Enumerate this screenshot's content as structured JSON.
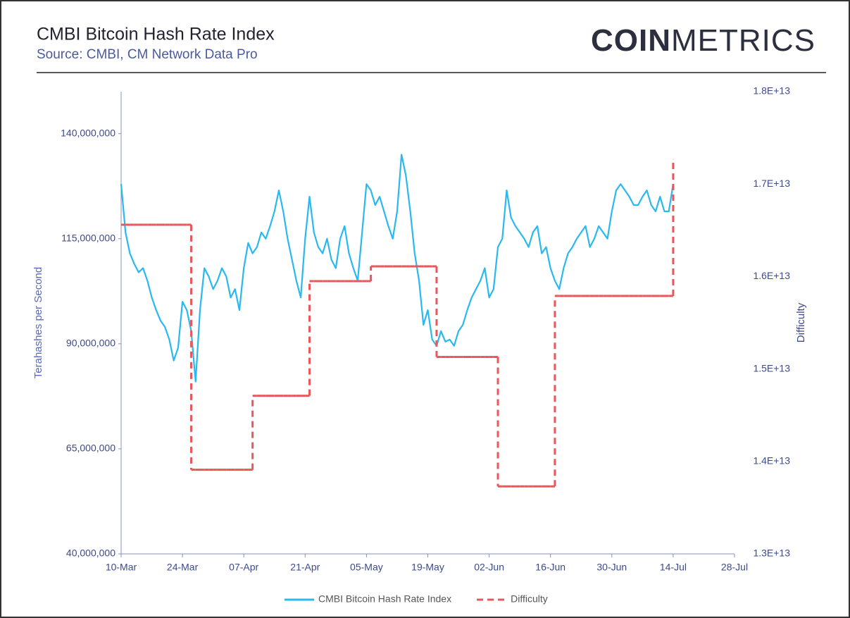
{
  "brand": {
    "bold": "COIN",
    "light": "METRICS"
  },
  "chart_data": {
    "type": "line",
    "title": "CMBI Bitcoin Hash Rate Index",
    "subtitle": "Source: CMBI, CM Network Data Pro",
    "y_label": "Terahashes per Second",
    "y2_label": "Difficulty",
    "x": [
      "10-Mar",
      "11-Mar",
      "12-Mar",
      "13-Mar",
      "14-Mar",
      "15-Mar",
      "16-Mar",
      "17-Mar",
      "18-Mar",
      "19-Mar",
      "20-Mar",
      "21-Mar",
      "22-Mar",
      "23-Mar",
      "24-Mar",
      "25-Mar",
      "26-Mar",
      "27-Mar",
      "28-Mar",
      "29-Mar",
      "30-Mar",
      "31-Mar",
      "01-Apr",
      "02-Apr",
      "03-Apr",
      "04-Apr",
      "05-Apr",
      "06-Apr",
      "07-Apr",
      "08-Apr",
      "09-Apr",
      "10-Apr",
      "11-Apr",
      "12-Apr",
      "13-Apr",
      "14-Apr",
      "15-Apr",
      "16-Apr",
      "17-Apr",
      "18-Apr",
      "19-Apr",
      "20-Apr",
      "21-Apr",
      "22-Apr",
      "23-Apr",
      "24-Apr",
      "25-Apr",
      "26-Apr",
      "27-Apr",
      "28-Apr",
      "29-Apr",
      "30-Apr",
      "01-May",
      "02-May",
      "03-May",
      "04-May",
      "05-May",
      "06-May",
      "07-May",
      "08-May",
      "09-May",
      "10-May",
      "11-May",
      "12-May",
      "13-May",
      "14-May",
      "15-May",
      "16-May",
      "17-May",
      "18-May",
      "19-May",
      "20-May",
      "21-May",
      "22-May",
      "23-May",
      "24-May",
      "25-May",
      "26-May",
      "27-May",
      "28-May",
      "29-May",
      "30-May",
      "31-May",
      "01-Jun",
      "02-Jun",
      "03-Jun",
      "04-Jun",
      "05-Jun",
      "06-Jun",
      "07-Jun",
      "08-Jun",
      "09-Jun",
      "10-Jun",
      "11-Jun",
      "12-Jun",
      "13-Jun",
      "14-Jun",
      "15-Jun",
      "16-Jun",
      "17-Jun",
      "18-Jun",
      "19-Jun",
      "20-Jun",
      "21-Jun",
      "22-Jun",
      "23-Jun",
      "24-Jun",
      "25-Jun",
      "26-Jun",
      "27-Jun",
      "28-Jun",
      "29-Jun",
      "30-Jun",
      "01-Jul",
      "02-Jul",
      "03-Jul",
      "04-Jul",
      "05-Jul",
      "06-Jul",
      "07-Jul",
      "08-Jul",
      "09-Jul",
      "10-Jul",
      "11-Jul",
      "12-Jul",
      "13-Jul",
      "14-Jul",
      "15-Jul",
      "16-Jul",
      "17-Jul",
      "18-Jul",
      "19-Jul",
      "20-Jul",
      "21-Jul",
      "22-Jul",
      "23-Jul",
      "24-Jul",
      "25-Jul",
      "26-Jul",
      "27-Jul",
      "28-Jul"
    ],
    "xticks": [
      "10-Mar",
      "24-Mar",
      "07-Apr",
      "21-Apr",
      "05-May",
      "19-May",
      "02-Jun",
      "16-Jun",
      "30-Jun",
      "14-Jul",
      "28-Jul"
    ],
    "ylim": [
      40000000,
      150000000
    ],
    "yticks": [
      {
        "value": 40000000,
        "label": "40,000,000"
      },
      {
        "value": 65000000,
        "label": "65,000,000"
      },
      {
        "value": 90000000,
        "label": "90,000,000"
      },
      {
        "value": 115000000,
        "label": "115,000,000"
      },
      {
        "value": 140000000,
        "label": "140,000,000"
      }
    ],
    "y2lim": [
      13000000000000,
      18000000000000
    ],
    "y2ticks": [
      {
        "value": 13000000000000,
        "label": "1.3E+13"
      },
      {
        "value": 14000000000000,
        "label": "1.4E+13"
      },
      {
        "value": 15000000000000,
        "label": "1.5E+13"
      },
      {
        "value": 16000000000000,
        "label": "1.6E+13"
      },
      {
        "value": 17000000000000,
        "label": "1.7E+13"
      },
      {
        "value": 18000000000000,
        "label": "1.8E+13"
      }
    ],
    "series": [
      {
        "name": "CMBI Bitcoin Hash Rate Index",
        "color": "#2ab8f0",
        "style": "solid",
        "values": [
          128000000,
          116500000,
          111500000,
          109000000,
          107000000,
          108000000,
          105000000,
          101000000,
          98000000,
          95500000,
          94000000,
          91000000,
          86000000,
          89000000,
          100000000,
          98000000,
          93000000,
          81000000,
          98000000,
          108000000,
          106000000,
          103000000,
          105000000,
          108000000,
          106000000,
          101000000,
          103000000,
          98000000,
          108000000,
          114000000,
          111500000,
          113000000,
          116500000,
          115000000,
          118000000,
          121500000,
          126500000,
          121500000,
          115000000,
          110000000,
          105000000,
          101000000,
          115000000,
          125000000,
          116500000,
          113000000,
          111500000,
          115000000,
          110000000,
          108000000,
          115000000,
          118000000,
          111500000,
          108000000,
          105000000,
          116500000,
          128000000,
          126500000,
          123000000,
          125000000,
          121500000,
          118000000,
          115000000,
          121500000,
          135000000,
          130000000,
          121500000,
          111500000,
          105000000,
          94500000,
          98000000,
          91000000,
          89500000,
          93000000,
          90500000,
          91000000,
          89500000,
          93000000,
          94500000,
          98000000,
          101000000,
          103000000,
          105000000,
          108000000,
          101000000,
          103000000,
          113000000,
          115000000,
          126500000,
          120000000,
          118000000,
          116500000,
          115000000,
          113000000,
          116500000,
          118000000,
          111500000,
          113000000,
          108000000,
          105000000,
          103000000,
          108000000,
          111500000,
          113000000,
          115000000,
          116500000,
          118000000,
          113000000,
          115000000,
          118000000,
          116500000,
          115000000,
          121500000,
          126500000,
          128000000,
          126500000,
          125000000,
          123000000,
          123000000,
          125000000,
          126500000,
          123000000,
          121500000,
          125000000,
          121500000,
          121500000,
          128000000,
          null,
          null,
          null,
          null,
          null,
          null,
          null,
          null,
          null,
          null,
          null,
          null,
          null,
          null
        ]
      },
      {
        "name": "Difficulty",
        "color": "#e8585a",
        "style": "dashed",
        "step": true,
        "axis": "y2",
        "values": [
          16560000000000,
          16560000000000,
          16560000000000,
          16560000000000,
          16560000000000,
          16560000000000,
          16560000000000,
          16560000000000,
          16560000000000,
          16560000000000,
          16560000000000,
          16560000000000,
          16560000000000,
          16560000000000,
          16560000000000,
          16560000000000,
          13910000000000,
          13910000000000,
          13910000000000,
          13910000000000,
          13910000000000,
          13910000000000,
          13910000000000,
          13910000000000,
          13910000000000,
          13910000000000,
          13910000000000,
          13910000000000,
          13910000000000,
          13910000000000,
          14710000000000,
          14710000000000,
          14710000000000,
          14710000000000,
          14710000000000,
          14710000000000,
          14710000000000,
          14710000000000,
          14710000000000,
          14710000000000,
          14710000000000,
          14710000000000,
          14710000000000,
          15950000000000,
          15950000000000,
          15950000000000,
          15950000000000,
          15950000000000,
          15950000000000,
          15950000000000,
          15950000000000,
          15950000000000,
          15950000000000,
          15950000000000,
          15950000000000,
          15950000000000,
          15950000000000,
          16110000000000,
          16110000000000,
          16110000000000,
          16110000000000,
          16110000000000,
          16110000000000,
          16110000000000,
          16110000000000,
          16110000000000,
          16110000000000,
          16110000000000,
          16110000000000,
          16110000000000,
          16110000000000,
          16110000000000,
          15130000000000,
          15130000000000,
          15130000000000,
          15130000000000,
          15130000000000,
          15130000000000,
          15130000000000,
          15130000000000,
          15130000000000,
          15130000000000,
          15130000000000,
          15130000000000,
          15130000000000,
          15130000000000,
          13730000000000,
          13730000000000,
          13730000000000,
          13730000000000,
          13730000000000,
          13730000000000,
          13730000000000,
          13730000000000,
          13730000000000,
          13730000000000,
          13730000000000,
          13730000000000,
          13730000000000,
          15790000000000,
          15790000000000,
          15790000000000,
          15790000000000,
          15790000000000,
          15790000000000,
          15790000000000,
          15790000000000,
          15790000000000,
          15790000000000,
          15790000000000,
          15790000000000,
          15790000000000,
          15790000000000,
          15790000000000,
          15790000000000,
          15790000000000,
          15790000000000,
          15790000000000,
          15790000000000,
          15790000000000,
          15790000000000,
          15790000000000,
          15790000000000,
          15790000000000,
          15790000000000,
          15790000000000,
          17270000000000,
          null,
          null,
          null,
          null,
          null,
          null,
          null,
          null,
          null,
          null,
          null,
          null,
          null,
          null
        ]
      }
    ],
    "legend": "bottom"
  }
}
